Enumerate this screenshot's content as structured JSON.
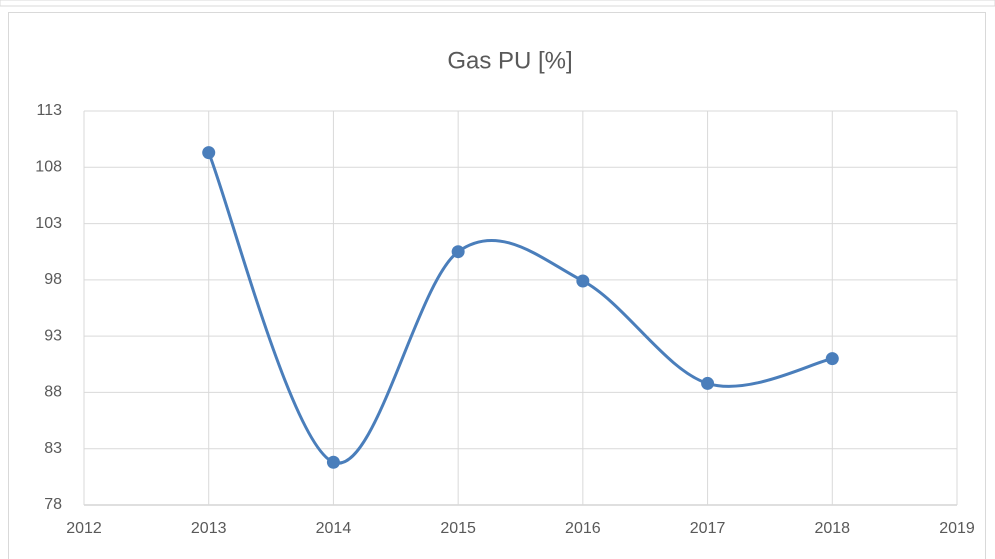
{
  "chart_data": {
    "type": "line",
    "title": "Gas PU [%]",
    "x": [
      2013,
      2014,
      2015,
      2016,
      2017,
      2018
    ],
    "series": [
      {
        "name": "Gas PU [%]",
        "color": "#4a7ebb",
        "values": [
          109.3,
          81.8,
          100.5,
          97.9,
          88.8,
          91.0
        ]
      }
    ],
    "xlim": [
      2012,
      2019
    ],
    "xticks": [
      2012,
      2013,
      2014,
      2015,
      2016,
      2017,
      2018,
      2019
    ],
    "ylim": [
      78,
      113
    ],
    "yticks": [
      78,
      83,
      88,
      93,
      98,
      103,
      108,
      113
    ],
    "grid": true,
    "smooth": true
  }
}
